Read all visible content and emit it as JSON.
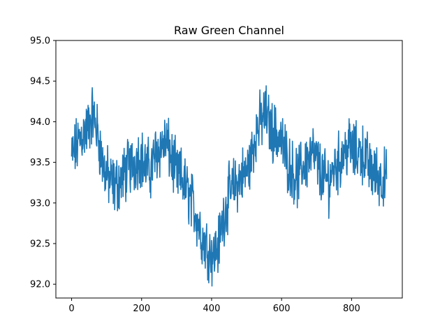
{
  "chart_data": {
    "type": "line",
    "title": "Raw Green Channel",
    "xlabel": "",
    "ylabel": "",
    "xlim": [
      -45,
      945
    ],
    "ylim": [
      91.83,
      95.0
    ],
    "x_ticks": [
      0,
      200,
      400,
      600,
      800
    ],
    "y_ticks": [
      92.0,
      92.5,
      93.0,
      93.5,
      94.0,
      94.5,
      95.0
    ],
    "x_tick_labels": [
      "0",
      "200",
      "400",
      "600",
      "800"
    ],
    "y_tick_labels": [
      "92.0",
      "92.5",
      "93.0",
      "93.5",
      "94.0",
      "94.5",
      "95.0"
    ],
    "grid": false,
    "series": [
      {
        "color": "#1f77b4",
        "x": [
          0,
          15,
          30,
          45,
          60,
          75,
          90,
          105,
          120,
          135,
          150,
          165,
          180,
          195,
          210,
          225,
          240,
          255,
          270,
          285,
          300,
          315,
          330,
          345,
          360,
          375,
          390,
          405,
          420,
          435,
          450,
          465,
          480,
          495,
          510,
          525,
          540,
          555,
          570,
          585,
          600,
          615,
          630,
          645,
          660,
          675,
          690,
          705,
          720,
          735,
          750,
          765,
          780,
          795,
          810,
          825,
          840,
          855,
          870,
          885,
          900
        ],
        "values": [
          93.55,
          93.7,
          93.85,
          93.9,
          94.1,
          93.85,
          93.45,
          93.3,
          93.2,
          93.25,
          93.35,
          93.45,
          93.5,
          93.6,
          93.45,
          93.4,
          93.6,
          93.7,
          93.75,
          93.55,
          93.35,
          93.3,
          93.15,
          93.0,
          92.8,
          92.55,
          92.45,
          92.35,
          92.5,
          92.85,
          93.1,
          93.2,
          93.3,
          93.35,
          93.5,
          93.85,
          94.0,
          94.1,
          93.9,
          93.85,
          93.75,
          93.55,
          93.4,
          93.3,
          93.45,
          93.55,
          93.6,
          93.45,
          93.3,
          93.25,
          93.45,
          93.5,
          93.65,
          93.7,
          93.6,
          93.65,
          93.55,
          93.4,
          93.35,
          93.3,
          93.3
        ],
        "noise_amplitude": 0.28
      }
    ]
  }
}
